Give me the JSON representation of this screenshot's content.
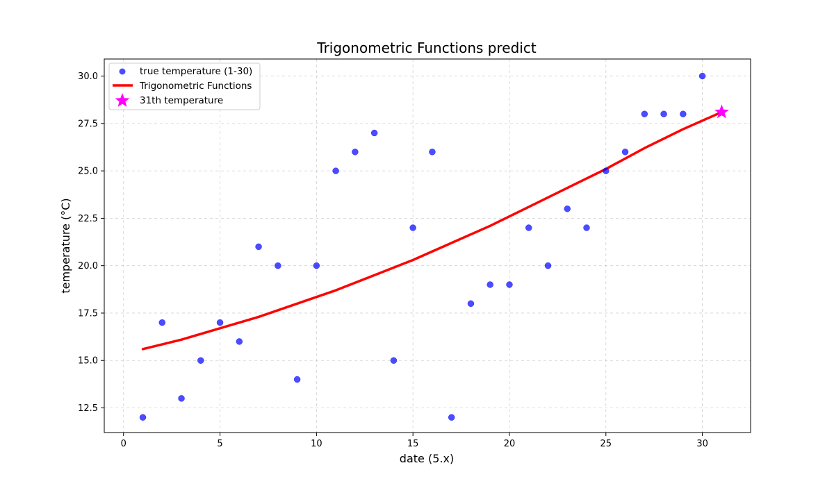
{
  "chart_data": {
    "type": "scatter",
    "title": "Trigonometric Functions predict",
    "xlabel": "date (5.x)",
    "ylabel": "temperature (°C)",
    "xlim": [
      -1,
      32.5
    ],
    "ylim": [
      11.2,
      30.9
    ],
    "xticks": [
      0,
      5,
      10,
      15,
      20,
      25,
      30
    ],
    "yticks": [
      12.5,
      15.0,
      17.5,
      20.0,
      22.5,
      25.0,
      27.5,
      30.0
    ],
    "ytick_labels": [
      "12.5",
      "15.0",
      "17.5",
      "20.0",
      "22.5",
      "25.0",
      "27.5",
      "30.0"
    ],
    "grid": true,
    "legend_position": "top-left",
    "series": [
      {
        "name": "true temperature (1-30)",
        "kind": "scatter",
        "color": "#0000ff",
        "x": [
          1,
          2,
          3,
          4,
          5,
          6,
          7,
          8,
          9,
          10,
          11,
          12,
          13,
          14,
          15,
          16,
          17,
          18,
          19,
          20,
          21,
          22,
          23,
          24,
          25,
          26,
          27,
          28,
          29,
          30
        ],
        "y": [
          12,
          17,
          13,
          15,
          17,
          16,
          21,
          20,
          14,
          20,
          25,
          26,
          27,
          15,
          22,
          26,
          12,
          18,
          19,
          19,
          22,
          20,
          23,
          22,
          25,
          26,
          28,
          28,
          28,
          30
        ]
      },
      {
        "name": "Trigonometric Functions",
        "kind": "line",
        "color": "#ff0000",
        "x": [
          1,
          3,
          5,
          7,
          9,
          11,
          13,
          15,
          17,
          19,
          21,
          23,
          25,
          27,
          29,
          31
        ],
        "y": [
          15.6,
          16.1,
          16.7,
          17.3,
          18.0,
          18.7,
          19.5,
          20.3,
          21.2,
          22.1,
          23.1,
          24.1,
          25.1,
          26.2,
          27.2,
          28.1
        ]
      },
      {
        "name": "31th temperature",
        "kind": "star",
        "color": "#ff00ff",
        "x": [
          31
        ],
        "y": [
          28.1
        ]
      }
    ]
  }
}
